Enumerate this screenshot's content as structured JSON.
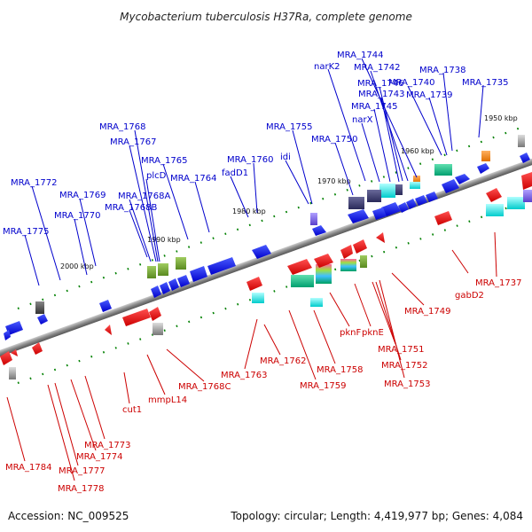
{
  "title": "Mycobacterium tuberculosis H37Ra, complete genome",
  "footer": {
    "accession": "Accession: NC_009525",
    "summary": "Topology: circular; Length: 4,419,977 bp; Genes: 4,084"
  },
  "colors": {
    "plus_label": "#0000cc",
    "minus_label": "#cc0000",
    "backbone": "#888888",
    "tick": "#008000"
  },
  "kbp_markers": [
    "1950 kbp",
    "1960 kbp",
    "1970 kbp",
    "1980 kbp",
    "1990 kbp",
    "2000 kbp"
  ],
  "plus_strand_labels": [
    "MRA_1744",
    "narK2",
    "MRA_1742",
    "MRA_1738",
    "MRA_1746",
    "MRA_1740",
    "MRA_1735",
    "MRA_1743",
    "MRA_1739",
    "MRA_1745",
    "narX",
    "MRA_1768",
    "MRA_1755",
    "MRA_1750",
    "MRA_1767",
    "MRA_1765",
    "MRA_1760",
    "idi",
    "fadD1",
    "MRA_1764",
    "MRA_1772",
    "plcD",
    "MRA_1769",
    "MRA_1768A",
    "MRA_1768B",
    "MRA_1770",
    "MRA_1775"
  ],
  "minus_strand_labels": [
    "MRA_1737",
    "gabD2",
    "MRA_1749",
    "pknE",
    "MRA_1751",
    "MRA_1752",
    "MRA_1753",
    "pknF",
    "MRA_1758",
    "MRA_1762",
    "MRA_1759",
    "MRA_1763",
    "MRA_1768C",
    "mmpL14",
    "cut1",
    "MRA_1773",
    "MRA_1774",
    "MRA_1777",
    "MRA_1778",
    "MRA_1784"
  ]
}
